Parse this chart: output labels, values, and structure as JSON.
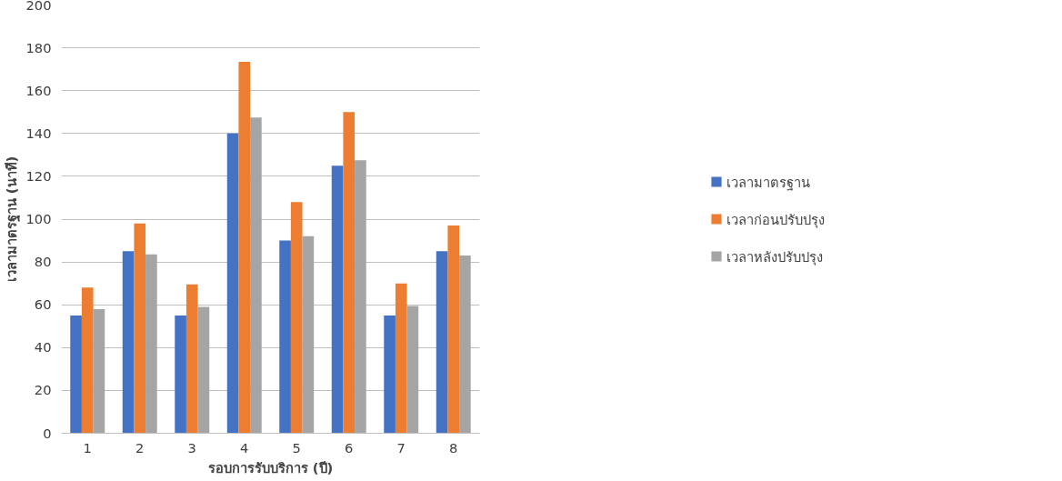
{
  "chart_data": {
    "type": "bar",
    "xlabel": "รอบการรับบริการ (ปี)",
    "ylabel": "เวลามาตรฐาน (นาที)",
    "categories": [
      "1",
      "2",
      "3",
      "4",
      "5",
      "6",
      "7",
      "8"
    ],
    "series": [
      {
        "name": "เวลามาตรฐาน",
        "color": "#4472c4",
        "values": [
          55,
          85,
          55,
          140,
          90,
          125,
          55,
          85
        ]
      },
      {
        "name": "เวลาก่อนปรับปรุง",
        "color": "#ed7d31",
        "values": [
          68,
          98,
          69.5,
          173.5,
          108,
          150,
          70,
          97
        ]
      },
      {
        "name": "เวลาหลังปรับปรุง",
        "color": "#a5a5a5",
        "values": [
          58,
          83.5,
          59,
          147.5,
          92,
          127.5,
          59.5,
          83
        ]
      }
    ],
    "ylim": [
      0,
      200
    ],
    "yticks": [
      0,
      20,
      40,
      60,
      80,
      100,
      120,
      140,
      160,
      180,
      200
    ],
    "grid": "y",
    "legend": "right"
  }
}
